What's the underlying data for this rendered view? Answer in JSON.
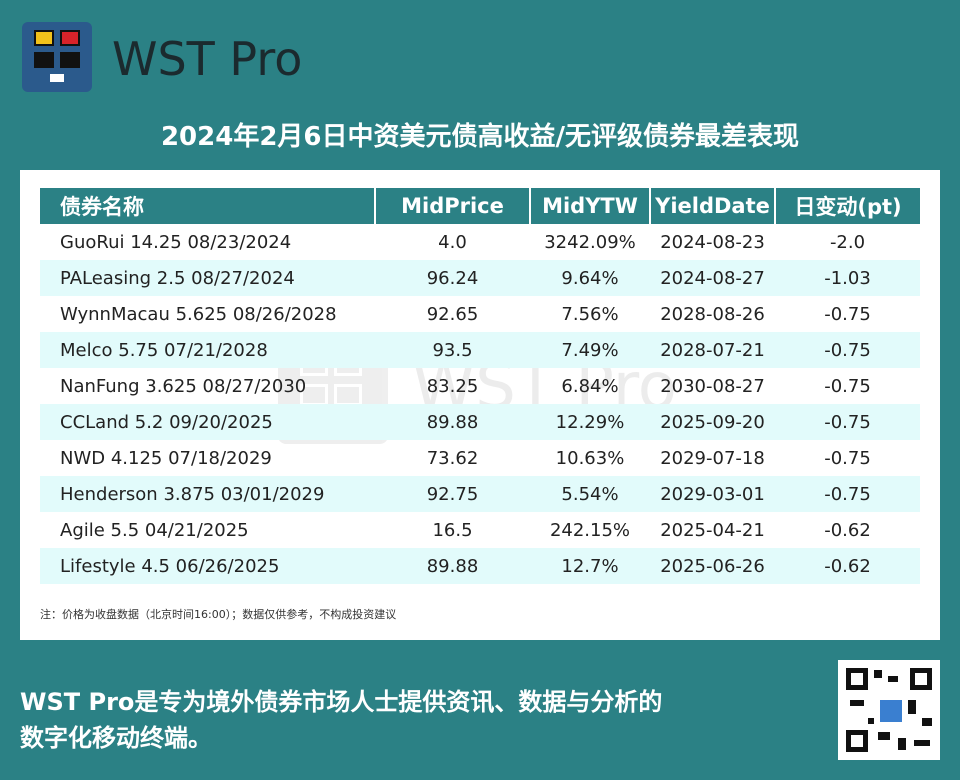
{
  "brand": {
    "name": "WST Pro",
    "colors": {
      "teal": "#2b8185",
      "logo_bg": "#2b5a8c",
      "yellow": "#f2c21b",
      "red": "#d8232a"
    }
  },
  "title": "2024年2月6日中资美元债高收益/无评级债券最差表现",
  "table": {
    "headers": [
      "债券名称",
      "MidPrice",
      "MidYTW",
      "YieldDate",
      "日变动(pt)"
    ],
    "rows": [
      [
        "GuoRui 14.25 08/23/2024",
        "4.0",
        "3242.09%",
        "2024-08-23",
        "-2.0"
      ],
      [
        "PALeasing 2.5 08/27/2024",
        "96.24",
        "9.64%",
        "2024-08-27",
        "-1.03"
      ],
      [
        "WynnMacau 5.625 08/26/2028",
        "92.65",
        "7.56%",
        "2028-08-26",
        "-0.75"
      ],
      [
        "Melco 5.75 07/21/2028",
        "93.5",
        "7.49%",
        "2028-07-21",
        "-0.75"
      ],
      [
        "NanFung 3.625 08/27/2030",
        "83.25",
        "6.84%",
        "2030-08-27",
        "-0.75"
      ],
      [
        "CCLand 5.2 09/20/2025",
        "89.88",
        "12.29%",
        "2025-09-20",
        "-0.75"
      ],
      [
        "NWD 4.125 07/18/2029",
        "73.62",
        "10.63%",
        "2029-07-18",
        "-0.75"
      ],
      [
        "Henderson 3.875 03/01/2029",
        "92.75",
        "5.54%",
        "2029-03-01",
        "-0.75"
      ],
      [
        "Agile 5.5 04/21/2025",
        "16.5",
        "242.15%",
        "2025-04-21",
        "-0.62"
      ],
      [
        "Lifestyle 4.5 06/26/2025",
        "89.88",
        "12.7%",
        "2025-06-26",
        "-0.62"
      ]
    ]
  },
  "note": "注：价格为收盘数据（北京时间16:00）；数据仅供参考，不构成投资建议",
  "footer": {
    "line1": "WST Pro是专为境外债券市场人士提供资讯、数据与分析的",
    "line2": "数字化移动终端。"
  },
  "watermark": "WST Pro",
  "icons": [
    "wst-pro-logo-icon",
    "qr-code-icon"
  ]
}
